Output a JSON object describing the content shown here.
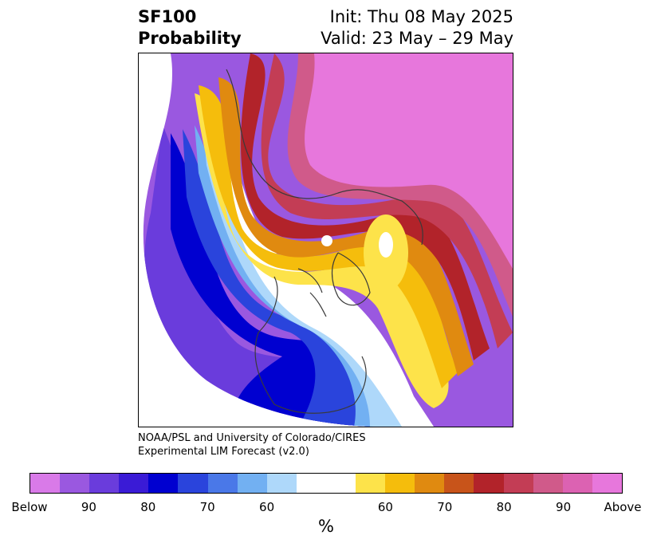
{
  "title": {
    "left_line1": "SF100",
    "left_line2": "Probability",
    "right_line1": "Init: Thu 08 May 2025",
    "right_line2": "Valid: 23 May – 29 May"
  },
  "credit": {
    "line1": "NOAA/PSL and University of Colorado/CIRES",
    "line2": "Experimental LIM Forecast (v2.0)"
  },
  "colorbar": {
    "colors": [
      "#d97ae8",
      "#9a58e0",
      "#6a3cdc",
      "#3a1bd6",
      "#0000d0",
      "#2a44dc",
      "#4a78e8",
      "#72b0f2",
      "#aed8fa",
      "#ffffff",
      "#ffffff",
      "#fde34a",
      "#f5bd0c",
      "#e08a10",
      "#c8541a",
      "#b2232a",
      "#c33d55",
      "#d05a8a",
      "#dc62b2",
      "#e777dc"
    ],
    "ticks": [
      "Below",
      "90",
      "80",
      "70",
      "60",
      "60",
      "70",
      "80",
      "90",
      "Above"
    ],
    "unit": "%"
  },
  "map_colors": {
    "below_far": "#9a58e0",
    "below_strong": "#6a3cdc",
    "below_core": "#0000d0",
    "below_mid": "#2a44dc",
    "below_light": "#72b0f2",
    "below_pale": "#aed8fa",
    "neutral": "#ffffff",
    "above_pale": "#fde34a",
    "above_light": "#f5bd0c",
    "above_mid": "#e08a10",
    "above_red": "#b2232a",
    "above_rose": "#c33d55",
    "above_pink": "#d05a8a",
    "above_max": "#e777dc",
    "coast": "#3a3a3a"
  }
}
